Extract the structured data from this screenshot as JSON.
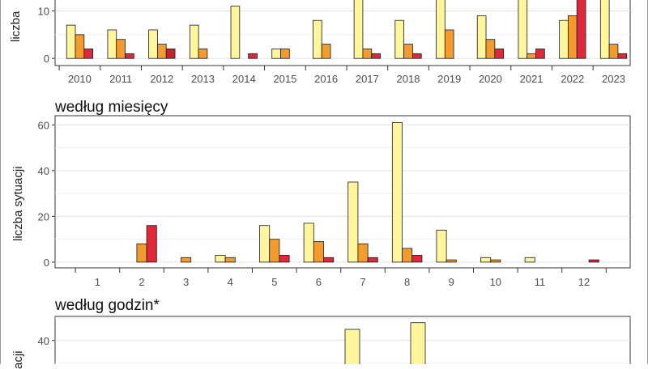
{
  "colors": {
    "series_0": "#fff59d",
    "series_1": "#f39b2d",
    "series_2": "#e0283a",
    "series_2_alt": "#c4222e"
  },
  "panels": {
    "year": {
      "ylabel": "liczba"
    },
    "month": {
      "title": "według miesięcy",
      "ylabel": "liczba sytuacji"
    },
    "hour": {
      "title": "według godzin*",
      "ylabel": "acji"
    }
  },
  "chart_data": [
    {
      "type": "bar",
      "title": "",
      "xlabel": "",
      "ylabel": "liczba",
      "categories": [
        "2010",
        "2011",
        "2012",
        "2013",
        "2014",
        "2015",
        "2016",
        "2017",
        "2018",
        "2019",
        "2020",
        "2021",
        "2022",
        "2023"
      ],
      "yticks": [
        0,
        10
      ],
      "ylim": [
        -1.5,
        14
      ],
      "grid": true,
      "series": [
        {
          "values": [
            7,
            6,
            6,
            7,
            11,
            2,
            8,
            14,
            8,
            14,
            9,
            14,
            8,
            14
          ]
        },
        {
          "values": [
            5,
            4,
            3,
            2,
            0,
            2,
            3,
            2,
            3,
            6,
            4,
            1,
            9,
            3
          ]
        },
        {
          "values": [
            2,
            1,
            2,
            0,
            1,
            0,
            0,
            1,
            1,
            0,
            2,
            2,
            14,
            1
          ]
        }
      ]
    },
    {
      "type": "bar",
      "title": "według miesięcy",
      "xlabel": "",
      "ylabel": "liczba sytuacji",
      "categories": [
        "1",
        "2",
        "3",
        "4",
        "5",
        "6",
        "7",
        "8",
        "9",
        "10",
        "11",
        "12"
      ],
      "yticks": [
        0,
        20,
        40,
        60
      ],
      "ylim": [
        -2.5,
        64
      ],
      "grid": true,
      "series": [
        {
          "values": [
            0,
            0,
            0,
            3,
            16,
            17,
            35,
            61,
            14,
            2,
            2,
            0
          ]
        },
        {
          "values": [
            0,
            8,
            2,
            2,
            10,
            9,
            8,
            6,
            1,
            1,
            0,
            0
          ]
        },
        {
          "values": [
            0,
            16,
            0,
            0,
            3,
            2,
            2,
            3,
            0,
            0,
            0,
            1
          ]
        }
      ]
    },
    {
      "type": "bar",
      "title": "według godzin*",
      "xlabel": "",
      "ylabel": "acji",
      "yticks": [
        40
      ],
      "grid": true,
      "series": [
        {
          "values": [
            45,
            48
          ]
        }
      ]
    }
  ]
}
